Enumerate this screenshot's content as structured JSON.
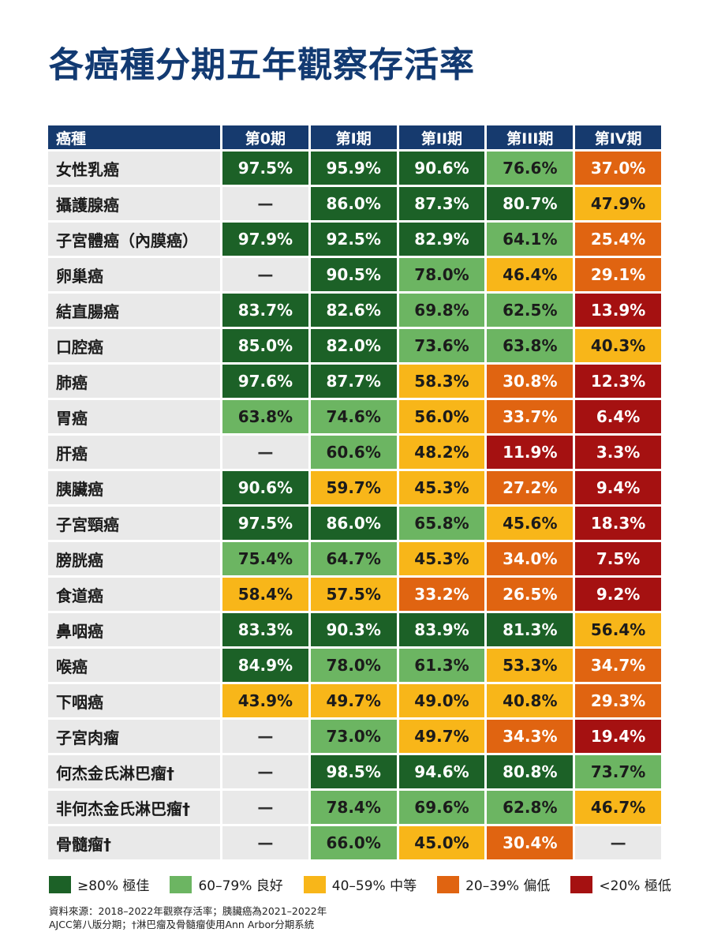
{
  "title": "各癌種分期五年觀察存活率",
  "table": {
    "headers": [
      "癌種",
      "第0期",
      "第I期",
      "第II期",
      "第III期",
      "第IV期"
    ],
    "rows": [
      {
        "name": "女性乳癌",
        "values": [
          "97.5%",
          "95.9%",
          "90.6%",
          "76.6%",
          "37.0%"
        ]
      },
      {
        "name": "攝護腺癌",
        "values": [
          "—",
          "86.0%",
          "87.3%",
          "80.7%",
          "47.9%"
        ]
      },
      {
        "name": "子宮體癌（內膜癌）",
        "values": [
          "97.9%",
          "92.5%",
          "82.9%",
          "64.1%",
          "25.4%"
        ]
      },
      {
        "name": "卵巢癌",
        "values": [
          "—",
          "90.5%",
          "78.0%",
          "46.4%",
          "29.1%"
        ]
      },
      {
        "name": "結直腸癌",
        "values": [
          "83.7%",
          "82.6%",
          "69.8%",
          "62.5%",
          "13.9%"
        ]
      },
      {
        "name": "口腔癌",
        "values": [
          "85.0%",
          "82.0%",
          "73.6%",
          "63.8%",
          "40.3%"
        ]
      },
      {
        "name": "肺癌",
        "values": [
          "97.6%",
          "87.7%",
          "58.3%",
          "30.8%",
          "12.3%"
        ]
      },
      {
        "name": "胃癌",
        "values": [
          "63.8%",
          "74.6%",
          "56.0%",
          "33.7%",
          "6.4%"
        ]
      },
      {
        "name": "肝癌",
        "values": [
          "—",
          "60.6%",
          "48.2%",
          "11.9%",
          "3.3%"
        ]
      },
      {
        "name": "胰臟癌",
        "values": [
          "90.6%",
          "59.7%",
          "45.3%",
          "27.2%",
          "9.4%"
        ]
      },
      {
        "name": "子宮頸癌",
        "values": [
          "97.5%",
          "86.0%",
          "65.8%",
          "45.6%",
          "18.3%"
        ]
      },
      {
        "name": "膀胱癌",
        "values": [
          "75.4%",
          "64.7%",
          "45.3%",
          "34.0%",
          "7.5%"
        ]
      },
      {
        "name": "食道癌",
        "values": [
          "58.4%",
          "57.5%",
          "33.2%",
          "26.5%",
          "9.2%"
        ]
      },
      {
        "name": "鼻咽癌",
        "values": [
          "83.3%",
          "90.3%",
          "83.9%",
          "81.3%",
          "56.4%"
        ]
      },
      {
        "name": "喉癌",
        "values": [
          "84.9%",
          "78.0%",
          "61.3%",
          "53.3%",
          "34.7%"
        ]
      },
      {
        "name": "下咽癌",
        "values": [
          "43.9%",
          "49.7%",
          "49.0%",
          "40.8%",
          "29.3%"
        ]
      },
      {
        "name": "子宮肉瘤",
        "values": [
          "—",
          "73.0%",
          "49.7%",
          "34.3%",
          "19.4%"
        ]
      },
      {
        "name": "何杰金氏淋巴瘤†",
        "values": [
          "—",
          "98.5%",
          "94.6%",
          "80.8%",
          "73.7%"
        ]
      },
      {
        "name": "非何杰金氏淋巴瘤†",
        "values": [
          "—",
          "78.4%",
          "69.6%",
          "62.8%",
          "46.7%"
        ]
      },
      {
        "name": "骨髓瘤†",
        "values": [
          "—",
          "66.0%",
          "45.0%",
          "30.4%",
          "—"
        ]
      }
    ]
  },
  "legend": [
    {
      "label": "≥80% 極佳",
      "color": "#1c6127"
    },
    {
      "label": "60–79% 良好",
      "color": "#6cb562"
    },
    {
      "label": "40–59% 中等",
      "color": "#f8b619"
    },
    {
      "label": "20–39% 偏低",
      "color": "#e06411"
    },
    {
      "label": "<20% 極低",
      "color": "#a51111"
    }
  ],
  "notes": [
    "資料來源：2018–2022年觀察存活率；胰臟癌為2021–2022年",
    "AJCC第八版分期；†淋巴瘤及骨髓瘤使用Ann Arbor分期系統"
  ]
}
